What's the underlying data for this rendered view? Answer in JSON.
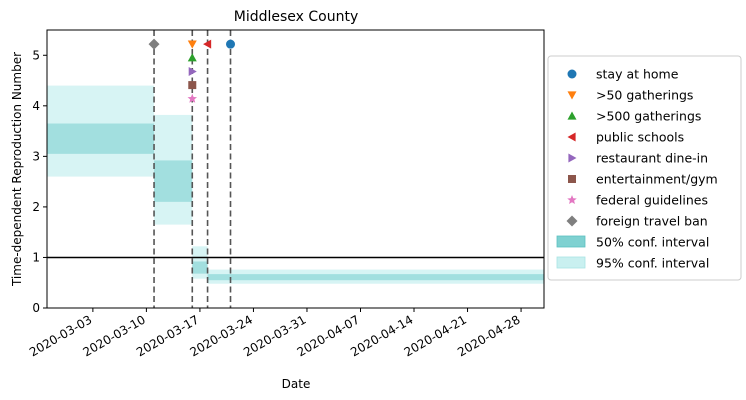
{
  "chart_data": {
    "type": "area",
    "title": "Middlesex County",
    "xlabel": "Date",
    "ylabel": "Time-dependent Reproduction Number",
    "x_range": [
      "2020-02-26",
      "2020-05-01"
    ],
    "ylim": [
      0,
      5.5
    ],
    "y_ticks": [
      0,
      1,
      2,
      3,
      4,
      5
    ],
    "x_ticks": [
      "2020-03-03",
      "2020-03-10",
      "2020-03-17",
      "2020-03-24",
      "2020-03-31",
      "2020-04-07",
      "2020-04-14",
      "2020-04-21",
      "2020-04-28"
    ],
    "grid": false,
    "legend_position": "outside right",
    "reference_line": {
      "y": 1,
      "color": "#000000"
    },
    "intervals": [
      {
        "start": "2020-02-26",
        "end": "2020-03-11",
        "ci50": [
          3.05,
          3.65
        ],
        "ci95": [
          2.6,
          4.4
        ]
      },
      {
        "start": "2020-03-11",
        "end": "2020-03-16",
        "ci50": [
          2.1,
          2.92
        ],
        "ci95": [
          1.65,
          3.82
        ]
      },
      {
        "start": "2020-03-16",
        "end": "2020-03-18",
        "ci50": [
          0.68,
          0.92
        ],
        "ci95": [
          0.58,
          1.22
        ]
      },
      {
        "start": "2020-03-18",
        "end": "2020-05-01",
        "ci50": [
          0.55,
          0.67
        ],
        "ci95": [
          0.48,
          0.76
        ]
      }
    ],
    "interventions": [
      {
        "label": "stay at home",
        "date": "2020-03-21",
        "y": 5.22,
        "color": "#1f77b4",
        "marker": "circle"
      },
      {
        "label": ">50 gatherings",
        "date": "2020-03-16",
        "y": 5.22,
        "color": "#ff7f0e",
        "marker": "triangle-down"
      },
      {
        "label": ">500 gatherings",
        "date": "2020-03-16",
        "y": 4.95,
        "color": "#2ca02c",
        "marker": "triangle-up"
      },
      {
        "label": "public schools",
        "date": "2020-03-18",
        "y": 5.22,
        "color": "#d62728",
        "marker": "triangle-left"
      },
      {
        "label": "restaurant dine-in",
        "date": "2020-03-16",
        "y": 4.68,
        "color": "#9467bd",
        "marker": "triangle-right"
      },
      {
        "label": "entertainment/gym",
        "date": "2020-03-16",
        "y": 4.41,
        "color": "#8c564b",
        "marker": "square"
      },
      {
        "label": "federal guidelines",
        "date": "2020-03-16",
        "y": 4.14,
        "color": "#e377c2",
        "marker": "star"
      },
      {
        "label": "foreign travel ban",
        "date": "2020-03-11",
        "y": 5.22,
        "color": "#7f7f7f",
        "marker": "diamond"
      }
    ],
    "vlines": [
      "2020-03-11",
      "2020-03-16",
      "2020-03-18",
      "2020-03-21"
    ],
    "legend_bands": [
      {
        "label": "50% conf. interval",
        "color": "#7fd1d1"
      },
      {
        "label": "95% conf. interval",
        "color": "#c9f0f0"
      }
    ]
  }
}
